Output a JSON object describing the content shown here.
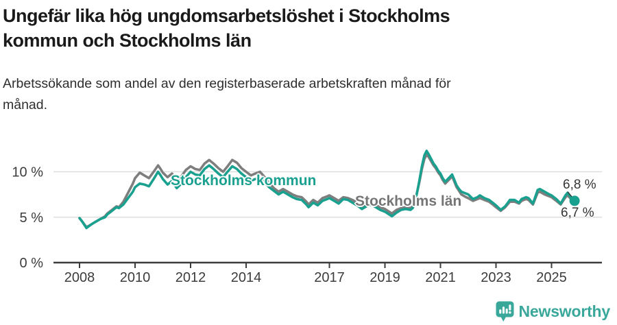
{
  "header": {
    "title_lines": [
      "Ungefär lika hög ungdomsarbetslöshet i Stockholms",
      "kommun och Stockholms län"
    ],
    "subtitle_lines": [
      "Arbetssökande som andel av den registerbaserade arbetskraften månad för",
      "månad."
    ]
  },
  "colors": {
    "kommun": "#1aa08f",
    "lan": "#7e7e7e",
    "lan_label": "#757575",
    "axis": "#3c3c3c",
    "grid": "#dddddd",
    "brand": "#3aa79b"
  },
  "chart_data": {
    "type": "line",
    "title": "Ungefär lika hög ungdomsarbetslöshet i Stockholms kommun och Stockholms län",
    "subtitle": "Arbetssökande som andel av den registerbaserade arbetskraften månad för månad.",
    "unit": "%",
    "grid": "horizontal-only",
    "legend_position": "inline-labels",
    "x_range": [
      2007.9,
      2026.4
    ],
    "y_range": [
      0,
      13
    ],
    "x_ticks": [
      2008,
      2010,
      2012,
      2014,
      2017,
      2019,
      2021,
      2023,
      2025
    ],
    "y_ticks": [
      {
        "value": 0,
        "label": "0 %"
      },
      {
        "value": 5,
        "label": "5 %"
      },
      {
        "value": 10,
        "label": "10 %"
      }
    ],
    "x": [
      2008.0,
      2008.08,
      2008.25,
      2008.42,
      2008.58,
      2008.75,
      2008.92,
      2009.0,
      2009.17,
      2009.33,
      2009.42,
      2009.58,
      2009.75,
      2009.92,
      2010.0,
      2010.17,
      2010.33,
      2010.5,
      2010.67,
      2010.83,
      2010.92,
      2011.0,
      2011.17,
      2011.33,
      2011.5,
      2011.67,
      2011.83,
      2012.0,
      2012.17,
      2012.33,
      2012.5,
      2012.67,
      2012.83,
      2013.0,
      2013.17,
      2013.33,
      2013.5,
      2013.67,
      2013.83,
      2014.0,
      2014.17,
      2014.33,
      2014.5,
      2014.67,
      2014.83,
      2015.0,
      2015.17,
      2015.33,
      2015.5,
      2015.67,
      2015.83,
      2016.0,
      2016.17,
      2016.25,
      2016.42,
      2016.58,
      2016.75,
      2016.92,
      2017.0,
      2017.17,
      2017.33,
      2017.5,
      2017.67,
      2017.83,
      2018.0,
      2018.17,
      2018.33,
      2018.5,
      2018.67,
      2018.83,
      2019.0,
      2019.25,
      2019.42,
      2019.58,
      2019.75,
      2019.92,
      2020.0,
      2020.08,
      2020.17,
      2020.25,
      2020.33,
      2020.42,
      2020.5,
      2020.58,
      2020.75,
      2020.83,
      2020.92,
      2021.0,
      2021.08,
      2021.17,
      2021.33,
      2021.42,
      2021.5,
      2021.58,
      2021.67,
      2021.75,
      2021.92,
      2022.0,
      2022.17,
      2022.33,
      2022.42,
      2022.58,
      2022.75,
      2022.92,
      2023.0,
      2023.17,
      2023.33,
      2023.5,
      2023.67,
      2023.83,
      2023.92,
      2024.08,
      2024.17,
      2024.33,
      2024.5,
      2024.58,
      2024.75,
      2024.92,
      2025.0,
      2025.17,
      2025.33,
      2025.5,
      2025.58,
      2025.67,
      2025.75,
      2025.83
    ],
    "series": [
      {
        "name": "Stockholms län",
        "color": "#7e7e7e",
        "end_label": "6,7 %",
        "values": [
          4.9,
          4.6,
          3.9,
          4.2,
          4.5,
          4.8,
          5.1,
          5.4,
          5.8,
          6.2,
          6.1,
          6.7,
          7.7,
          8.7,
          9.3,
          9.9,
          9.6,
          9.3,
          10.0,
          10.7,
          10.3,
          9.9,
          9.4,
          9.8,
          9.0,
          9.5,
          10.2,
          10.6,
          10.3,
          10.2,
          10.9,
          11.3,
          10.9,
          10.4,
          10.0,
          10.6,
          11.3,
          11.0,
          10.4,
          10.0,
          9.6,
          9.8,
          10.0,
          9.4,
          8.8,
          8.2,
          7.8,
          8.1,
          7.8,
          7.5,
          7.3,
          7.2,
          6.7,
          6.4,
          6.9,
          6.6,
          7.1,
          7.3,
          7.4,
          7.1,
          6.8,
          7.2,
          7.1,
          6.9,
          6.6,
          6.2,
          6.4,
          6.6,
          6.3,
          6.1,
          5.9,
          5.4,
          5.8,
          6.0,
          6.1,
          6.0,
          6.2,
          6.8,
          7.9,
          9.0,
          10.3,
          11.4,
          11.9,
          11.6,
          10.7,
          10.4,
          9.9,
          9.6,
          9.1,
          8.7,
          9.2,
          9.5,
          8.9,
          8.3,
          7.9,
          7.5,
          7.2,
          7.1,
          6.8,
          7.0,
          7.1,
          6.9,
          6.7,
          6.3,
          6.1,
          5.7,
          6.1,
          6.7,
          6.7,
          6.5,
          6.8,
          7.0,
          6.9,
          6.4,
          7.7,
          7.8,
          7.5,
          7.3,
          7.2,
          6.8,
          6.4,
          7.2,
          7.4,
          7.1,
          6.8,
          6.7
        ]
      },
      {
        "name": "Stockholms kommun",
        "color": "#1aa08f",
        "end_label": "6,8 %",
        "end_dot": true,
        "values": [
          4.9,
          4.6,
          3.8,
          4.2,
          4.5,
          4.8,
          5.0,
          5.3,
          5.7,
          6.1,
          6.0,
          6.4,
          7.1,
          7.8,
          8.3,
          8.7,
          8.6,
          8.4,
          9.2,
          10.0,
          9.6,
          9.2,
          8.6,
          9.0,
          8.2,
          8.7,
          9.4,
          10.0,
          9.7,
          9.6,
          10.3,
          10.7,
          10.3,
          9.8,
          9.4,
          10.0,
          10.6,
          10.3,
          9.8,
          9.4,
          9.0,
          9.2,
          9.3,
          8.8,
          8.3,
          7.9,
          7.5,
          7.8,
          7.5,
          7.2,
          7.0,
          6.9,
          6.4,
          6.1,
          6.6,
          6.3,
          6.8,
          7.0,
          7.1,
          6.8,
          6.5,
          7.0,
          6.9,
          6.6,
          6.3,
          5.9,
          6.2,
          6.4,
          6.1,
          5.8,
          5.6,
          5.1,
          5.5,
          5.8,
          5.9,
          5.8,
          6.0,
          6.6,
          7.9,
          9.2,
          10.6,
          11.8,
          12.3,
          11.9,
          10.9,
          10.6,
          10.1,
          9.8,
          9.3,
          8.9,
          9.4,
          9.7,
          9.1,
          8.5,
          8.1,
          7.8,
          7.6,
          7.5,
          7.0,
          7.2,
          7.4,
          7.1,
          6.9,
          6.5,
          6.3,
          5.8,
          6.2,
          6.9,
          6.9,
          6.6,
          7.0,
          7.2,
          7.1,
          6.5,
          8.0,
          8.1,
          7.8,
          7.5,
          7.4,
          7.0,
          6.5,
          7.4,
          7.7,
          7.3,
          6.9,
          6.8
        ]
      }
    ]
  },
  "annotations": {
    "kommun_label": "Stockholms kommun",
    "lan_label": "Stockholms län",
    "end_value_kommun": "6,8 %",
    "end_value_lan": "6,7 %"
  },
  "footer": {
    "brand": "Newsworthy"
  }
}
